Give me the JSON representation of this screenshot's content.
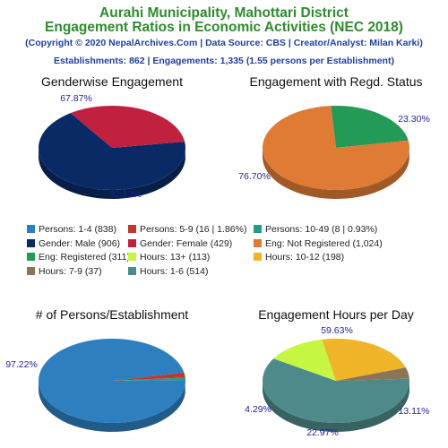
{
  "header": {
    "title_line1": "Aurahi Municipality, Mahottari District",
    "title_line2": "Engagement Ratios in Economic Activities (NEC 2018)",
    "subtitle": "(Copyright © 2020 NepalArchives.Com | Data Source: CBS | Creator/Analyst: Milan Karki)",
    "stats": "Establishments: 862 | Engagements: 1,335 (1.55 persons per Establishment)"
  },
  "colors": {
    "persons_1_4": "#2e7fc0",
    "persons_5_9": "#c0392b",
    "persons_10_49": "#239a8a",
    "male": "#0a2a66",
    "female": "#c0213f",
    "not_registered": "#e07b35",
    "registered": "#239a55",
    "hours_13_plus": "#c6f542",
    "hours_10_12": "#f0b429",
    "hours_7_9": "#8c7556",
    "hours_1_6": "#4f8a8a"
  },
  "legend": [
    {
      "label": "Persons: 1-4 (838)",
      "color": "#2e7fc0"
    },
    {
      "label": "Persons: 5-9 (16 | 1.86%)",
      "color": "#c0392b"
    },
    {
      "label": "Persons: 10-49 (8 | 0.93%)",
      "color": "#239a8a"
    },
    {
      "label": "Gender: Male (906)",
      "color": "#0a2a66"
    },
    {
      "label": "Gender: Female (429)",
      "color": "#c0213f"
    },
    {
      "label": "Eng: Not Registered (1,024)",
      "color": "#e07b35"
    },
    {
      "label": "Eng: Registered (311)",
      "color": "#239a55"
    },
    {
      "label": "Hours: 13+ (113)",
      "color": "#c6f542"
    },
    {
      "label": "Hours: 10-12 (198)",
      "color": "#f0b429"
    },
    {
      "label": "Hours: 7-9 (37)",
      "color": "#8c7556"
    },
    {
      "label": "Hours: 1-6 (514)",
      "color": "#4f8a8a"
    }
  ],
  "chart_data": [
    {
      "type": "pie",
      "title": "Genderwise Engagement",
      "slices": [
        {
          "label": "Gender: Male",
          "value": 906,
          "percent_label": "67.87%",
          "color": "#0a2a66"
        },
        {
          "label": "Gender: Female",
          "value": 429,
          "percent_label": "32.13%",
          "color": "#c0213f"
        }
      ]
    },
    {
      "type": "pie",
      "title": "Engagement with Regd. Status",
      "slices": [
        {
          "label": "Eng: Registered",
          "value": 311,
          "percent_label": "23.30%",
          "color": "#239a55"
        },
        {
          "label": "Eng: Not Registered",
          "value": 1024,
          "percent_label": "76.70%",
          "color": "#e07b35"
        }
      ]
    },
    {
      "type": "pie",
      "title": "# of Persons/Establishment",
      "slices": [
        {
          "label": "Persons: 1-4",
          "value": 838,
          "percent_label": "97.22%",
          "color": "#2e7fc0"
        },
        {
          "label": "Persons: 5-9",
          "value": 16,
          "percent_label": "",
          "color": "#c0392b"
        },
        {
          "label": "Persons: 10-49",
          "value": 8,
          "percent_label": "",
          "color": "#239a8a"
        }
      ]
    },
    {
      "type": "pie",
      "title": "Engagement Hours per Day",
      "slices": [
        {
          "label": "Hours: 1-6",
          "value": 514,
          "percent_label": "59.63%",
          "color": "#4f8a8a"
        },
        {
          "label": "Hours: 13+",
          "value": 113,
          "percent_label": "13.11%",
          "color": "#c6f542"
        },
        {
          "label": "Hours: 10-12",
          "value": 198,
          "percent_label": "22.97%",
          "color": "#f0b429"
        },
        {
          "label": "Hours: 7-9",
          "value": 37,
          "percent_label": "4.29%",
          "color": "#8c7556"
        }
      ]
    }
  ]
}
